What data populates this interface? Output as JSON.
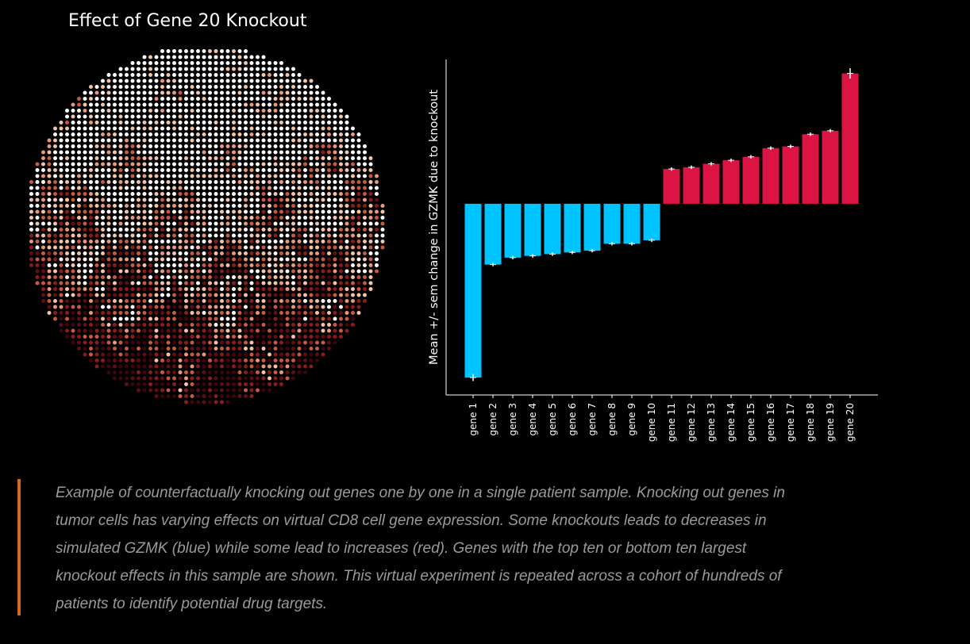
{
  "spatial_panel": {
    "title": "Effect of Gene 20 Knockout",
    "colors": [
      "#ffffff",
      "#f4c4a8",
      "#e89a78",
      "#c75b3f",
      "#8a1c1c",
      "#5e0f14",
      "#3a070b"
    ]
  },
  "chart_data": {
    "type": "bar",
    "title": "",
    "xlabel": "",
    "ylabel": "Mean +/- sem change in GZMK due to knockout",
    "categories": [
      "gene 1",
      "gene 2",
      "gene 3",
      "gene 4",
      "gene 5",
      "gene 6",
      "gene 7",
      "gene 8",
      "gene 9",
      "gene 10",
      "gene 11",
      "gene 12",
      "gene 13",
      "gene 14",
      "gene 15",
      "gene 16",
      "gene 17",
      "gene 18",
      "gene 19",
      "gene 20"
    ],
    "values": [
      -1.0,
      -0.35,
      -0.31,
      -0.3,
      -0.29,
      -0.28,
      -0.27,
      -0.23,
      -0.23,
      -0.21,
      0.2,
      0.21,
      0.23,
      0.25,
      0.27,
      0.32,
      0.33,
      0.4,
      0.42,
      0.75
    ],
    "errors": [
      0.02,
      0.01,
      0.01,
      0.01,
      0.01,
      0.01,
      0.01,
      0.01,
      0.01,
      0.01,
      0.01,
      0.01,
      0.01,
      0.01,
      0.01,
      0.01,
      0.01,
      0.01,
      0.01,
      0.03
    ],
    "negative_color": "#00c4ff",
    "positive_color": "#dc1443",
    "error_color": "#ffffff",
    "ylim": [
      -1.1,
      0.83
    ]
  },
  "caption": {
    "text": "Example of counterfactually knocking out genes one by one in a single patient sample. Knocking out genes in tumor cells has varying effects on virtual CD8 cell gene expression. Some knockouts leads to decreases in simulated GZMK (blue) while some lead to increases (red). Genes with the top ten or bottom ten largest knockout effects in this sample are shown. This virtual experiment is repeated across a cohort of hundreds of patients to identify potential drug targets."
  }
}
